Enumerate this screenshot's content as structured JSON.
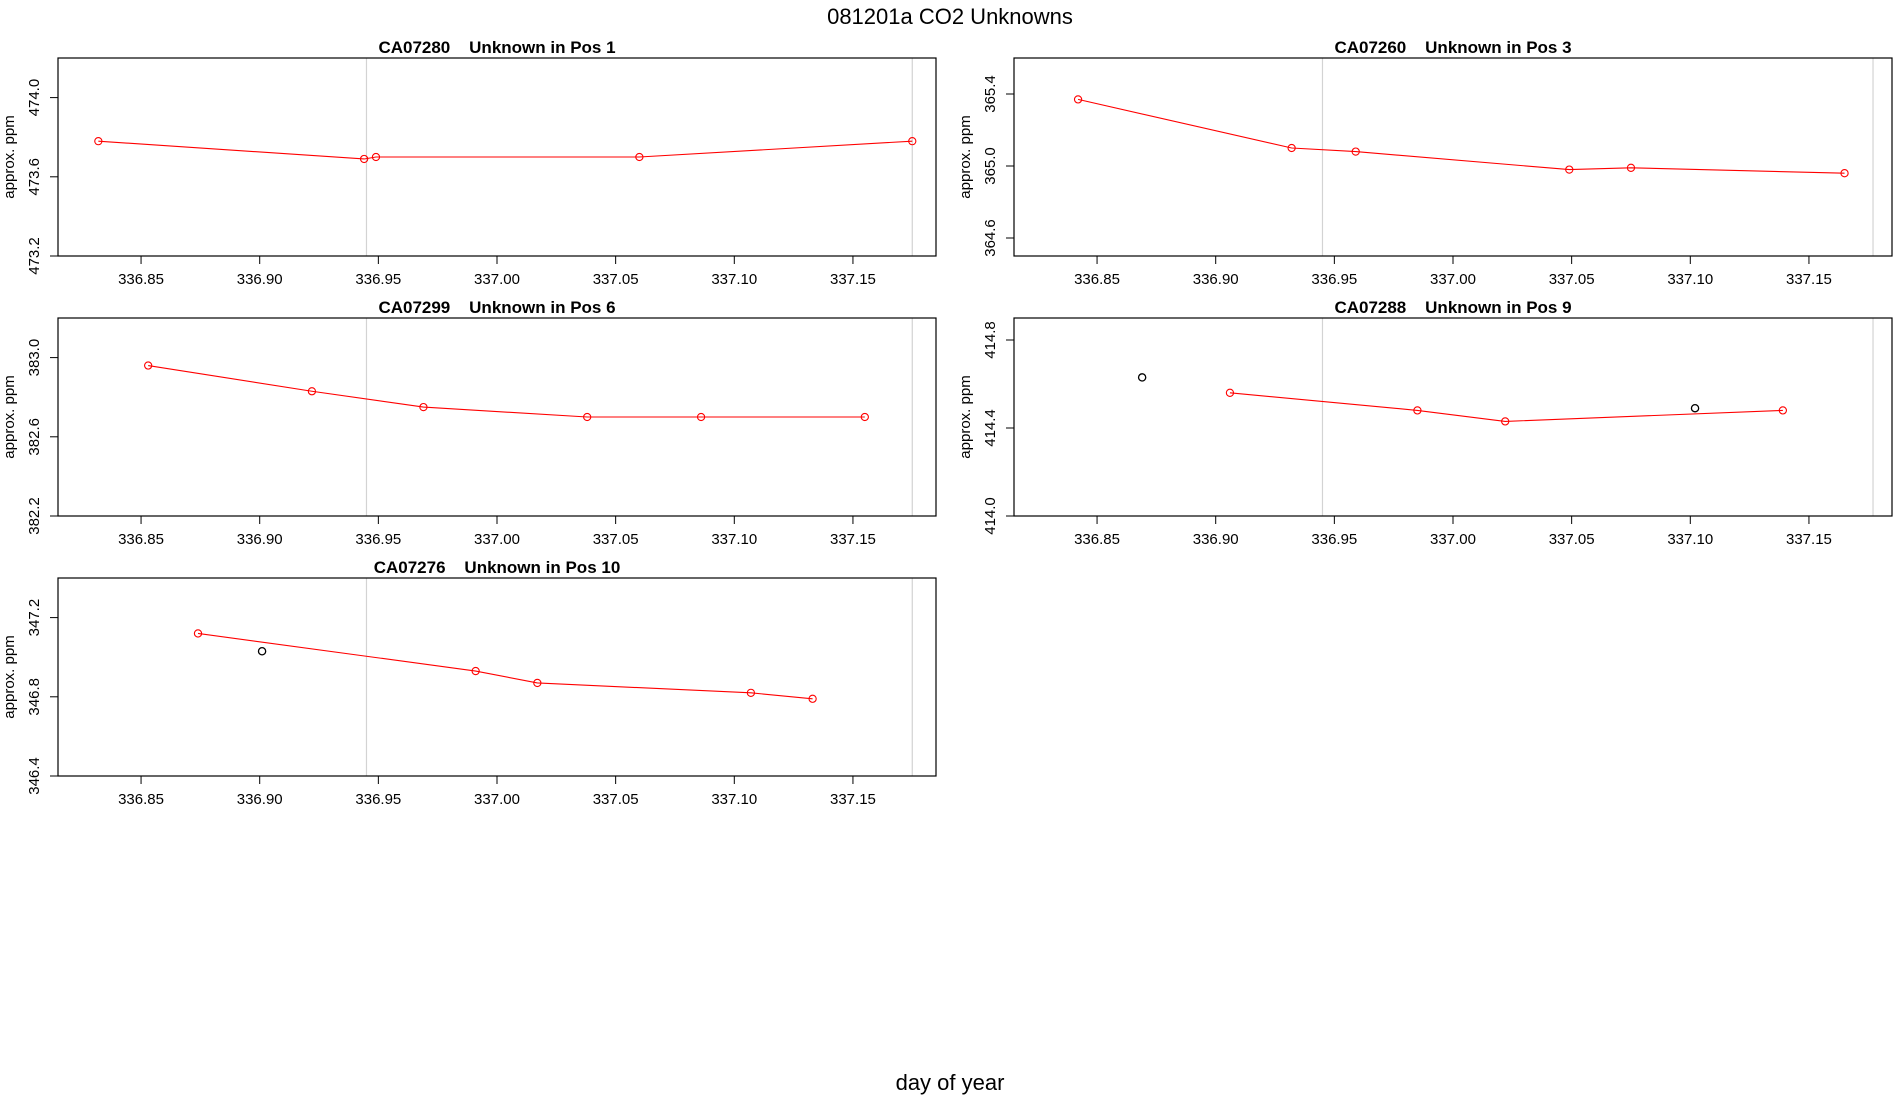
{
  "page_title": "081201a  CO2 Unknowns",
  "x_axis_label": "day of year",
  "colors": {
    "series_line": "#ff0000",
    "flagged_point": "#000000",
    "vertical_marker": "#d3d3d3",
    "frame": "#000000"
  },
  "chart_data": [
    {
      "type": "line",
      "title": "CA07280    Unknown in Pos 1",
      "ylabel": "approx. ppm",
      "xlim": [
        336.815,
        337.185
      ],
      "ylim": [
        473.2,
        474.2
      ],
      "xticks": [
        336.85,
        336.9,
        336.95,
        337.0,
        337.05,
        337.1,
        337.15
      ],
      "xtick_labels": [
        "336.85",
        "336.90",
        "336.95",
        "337.00",
        "337.05",
        "337.10",
        "337.15"
      ],
      "yticks": [
        473.2,
        473.6,
        474.0
      ],
      "ytick_labels": [
        "473.2",
        "473.6",
        "474.0"
      ],
      "vlines": [
        336.945,
        337.175
      ],
      "series": [
        {
          "x": [
            336.832,
            336.944,
            336.949,
            337.06,
            337.175
          ],
          "y": [
            473.78,
            473.69,
            473.7,
            473.7,
            473.78
          ]
        }
      ],
      "flagged": []
    },
    {
      "type": "line",
      "title": "CA07260    Unknown in Pos 3",
      "ylabel": "approx. ppm",
      "xlim": [
        336.815,
        337.185
      ],
      "ylim": [
        364.5,
        365.6
      ],
      "xticks": [
        336.85,
        336.9,
        336.95,
        337.0,
        337.05,
        337.1,
        337.15
      ],
      "xtick_labels": [
        "336.85",
        "336.90",
        "336.95",
        "337.00",
        "337.05",
        "337.10",
        "337.15"
      ],
      "yticks": [
        364.6,
        365.0,
        365.4
      ],
      "ytick_labels": [
        "364.6",
        "365.0",
        "365.4"
      ],
      "vlines": [
        336.945,
        337.177
      ],
      "series": [
        {
          "x": [
            336.842,
            336.932,
            336.959,
            337.049,
            337.075,
            337.165
          ],
          "y": [
            365.37,
            365.1,
            365.08,
            364.98,
            364.99,
            364.96
          ]
        }
      ],
      "flagged": []
    },
    {
      "type": "line",
      "title": "CA07299    Unknown in Pos 6",
      "ylabel": "approx. ppm",
      "xlim": [
        336.815,
        337.185
      ],
      "ylim": [
        382.2,
        383.2
      ],
      "xticks": [
        336.85,
        336.9,
        336.95,
        337.0,
        337.05,
        337.1,
        337.15
      ],
      "xtick_labels": [
        "336.85",
        "336.90",
        "336.95",
        "337.00",
        "337.05",
        "337.10",
        "337.15"
      ],
      "yticks": [
        382.2,
        382.6,
        383.0
      ],
      "ytick_labels": [
        "382.2",
        "382.6",
        "383.0"
      ],
      "vlines": [
        336.945,
        337.175
      ],
      "series": [
        {
          "x": [
            336.853,
            336.922,
            336.969,
            337.038,
            337.086,
            337.155
          ],
          "y": [
            382.96,
            382.83,
            382.75,
            382.7,
            382.7,
            382.7
          ]
        }
      ],
      "flagged": []
    },
    {
      "type": "line",
      "title": "CA07288    Unknown in Pos 9",
      "ylabel": "approx. ppm",
      "xlim": [
        336.815,
        337.185
      ],
      "ylim": [
        414.0,
        414.9
      ],
      "xticks": [
        336.85,
        336.9,
        336.95,
        337.0,
        337.05,
        337.1,
        337.15
      ],
      "xtick_labels": [
        "336.85",
        "336.90",
        "336.95",
        "337.00",
        "337.05",
        "337.10",
        "337.15"
      ],
      "yticks": [
        414.0,
        414.4,
        414.8
      ],
      "ytick_labels": [
        "414.0",
        "414.4",
        "414.8"
      ],
      "vlines": [
        336.945,
        337.177
      ],
      "series": [
        {
          "x": [
            336.906,
            336.985,
            337.022,
            337.139
          ],
          "y": [
            414.56,
            414.48,
            414.43,
            414.48
          ]
        }
      ],
      "flagged": [
        {
          "x": 336.869,
          "y": 414.63
        },
        {
          "x": 337.102,
          "y": 414.49
        }
      ]
    },
    {
      "type": "line",
      "title": "CA07276    Unknown in Pos 10",
      "ylabel": "approx. ppm",
      "xlim": [
        336.815,
        337.185
      ],
      "ylim": [
        346.4,
        347.4
      ],
      "xticks": [
        336.85,
        336.9,
        336.95,
        337.0,
        337.05,
        337.1,
        337.15
      ],
      "xtick_labels": [
        "336.85",
        "336.90",
        "336.95",
        "337.00",
        "337.05",
        "337.10",
        "337.15"
      ],
      "yticks": [
        346.4,
        346.8,
        347.2
      ],
      "ytick_labels": [
        "346.4",
        "346.8",
        "347.2"
      ],
      "vlines": [
        336.945,
        337.175
      ],
      "series": [
        {
          "x": [
            336.874,
            336.991,
            337.017,
            337.107,
            337.133
          ],
          "y": [
            347.12,
            346.93,
            346.87,
            346.82,
            346.79
          ]
        }
      ],
      "flagged": [
        {
          "x": 336.901,
          "y": 347.03
        }
      ]
    }
  ]
}
